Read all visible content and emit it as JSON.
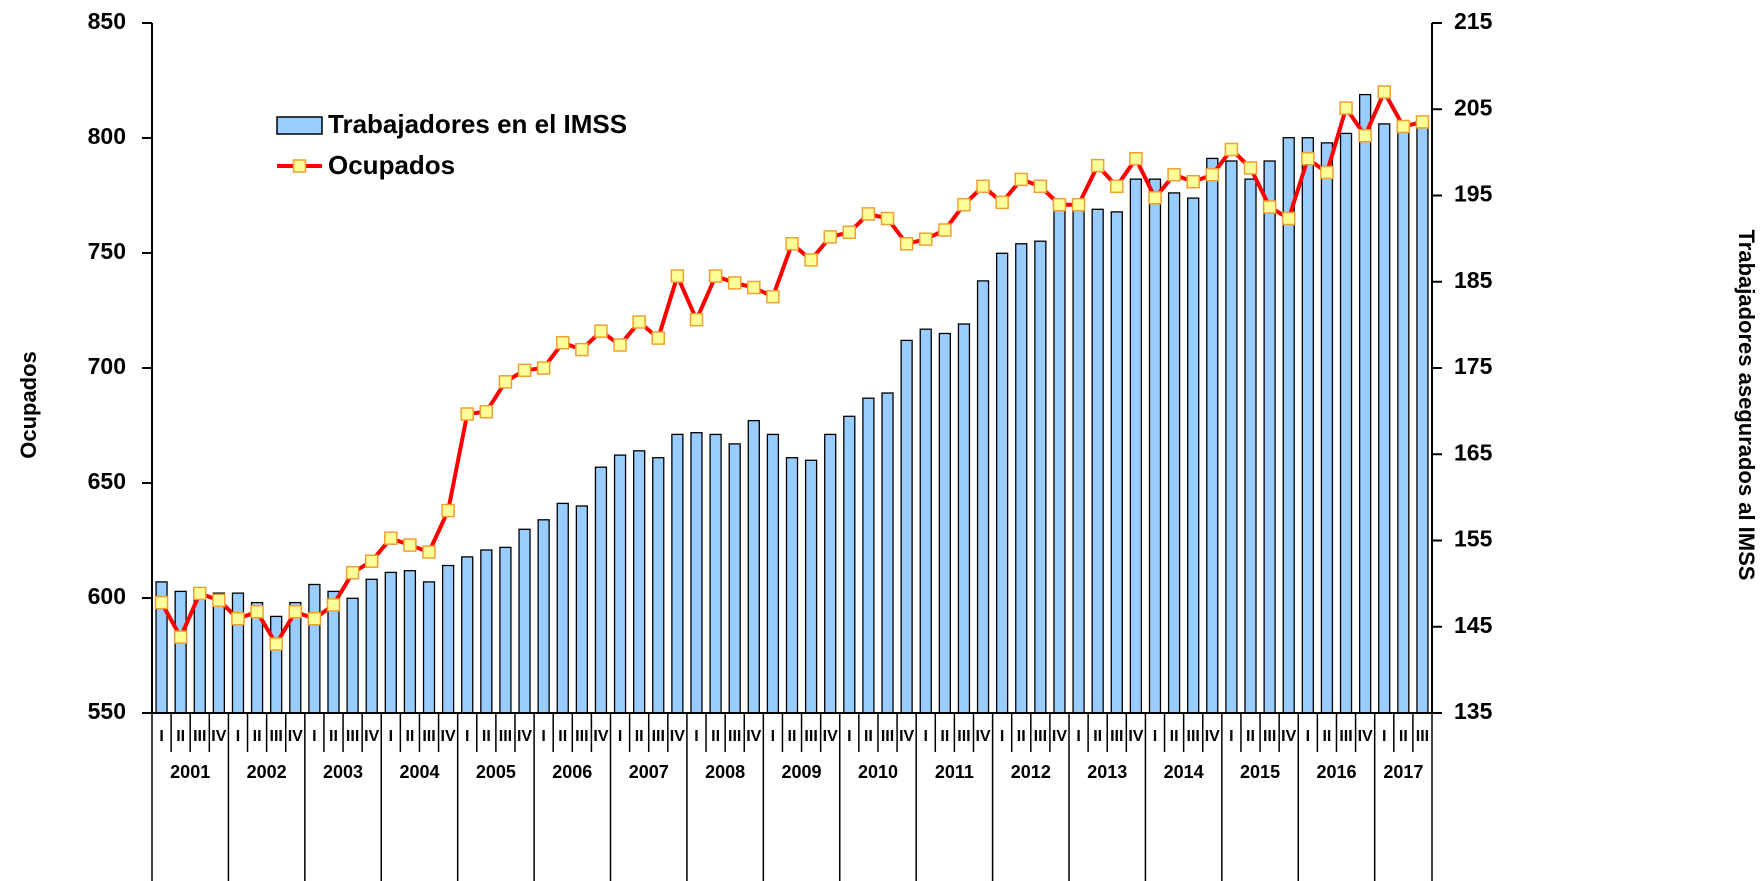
{
  "chart_data": {
    "type": "combo",
    "categories": [
      "I",
      "II",
      "III",
      "IV",
      "I",
      "II",
      "III",
      "IV",
      "I",
      "II",
      "III",
      "IV",
      "I",
      "II",
      "III",
      "IV",
      "I",
      "II",
      "III",
      "IV",
      "I",
      "II",
      "III",
      "IV",
      "I",
      "II",
      "III",
      "IV",
      "I",
      "II",
      "III",
      "IV",
      "I",
      "II",
      "III",
      "IV",
      "I",
      "II",
      "III",
      "IV",
      "I",
      "II",
      "III",
      "IV",
      "I",
      "II",
      "III",
      "IV",
      "I",
      "II",
      "III",
      "IV",
      "I",
      "II",
      "III",
      "IV",
      "I",
      "II",
      "III",
      "IV",
      "I",
      "II",
      "III",
      "IV",
      "I",
      "II",
      "III"
    ],
    "x_groups": [
      "2001",
      "2002",
      "2003",
      "2004",
      "2005",
      "2006",
      "2007",
      "2008",
      "2009",
      "2010",
      "2011",
      "2012",
      "2013",
      "2014",
      "2015",
      "2016",
      "2017"
    ],
    "y_label": "Ocupados",
    "y2_label": "Trabajadores asegurados al IMSS",
    "ylim": [
      550,
      850
    ],
    "yticks": [
      550,
      600,
      650,
      700,
      750,
      800,
      850
    ],
    "y2lim": [
      135,
      215
    ],
    "y2ticks": [
      135,
      145,
      155,
      165,
      175,
      185,
      195,
      205,
      215
    ],
    "grid": false,
    "legend": "upper left",
    "series": [
      {
        "name": "Trabajadores en el IMSS",
        "type": "bar",
        "axis": "y2",
        "color": "#99ccff",
        "values": [
          150.2,
          149.1,
          148.3,
          148.9,
          148.9,
          147.8,
          146.2,
          147.8,
          149.9,
          149.1,
          148.3,
          150.5,
          151.3,
          151.5,
          150.2,
          152.1,
          153.1,
          153.9,
          154.2,
          156.3,
          157.4,
          159.3,
          159.0,
          163.5,
          164.9,
          165.4,
          164.6,
          167.3,
          167.5,
          167.3,
          166.2,
          168.9,
          167.3,
          164.6,
          164.3,
          167.3,
          169.4,
          171.5,
          172.1,
          178.2,
          179.5,
          179.0,
          180.1,
          185.1,
          188.3,
          189.4,
          189.7,
          193.7,
          193.7,
          193.4,
          193.1,
          196.9,
          196.9,
          195.3,
          194.7,
          199.3,
          199.0,
          196.9,
          199.0,
          201.7,
          201.7,
          201.1,
          202.2,
          206.7,
          203.3,
          202.5,
          203.0
        ]
      },
      {
        "name": "Ocupados",
        "type": "line",
        "axis": "y",
        "color": "#ff0000",
        "marker_color": "#ffff99",
        "values": [
          598,
          583,
          602,
          599,
          591,
          594,
          580,
          594,
          591,
          597,
          611,
          616,
          626,
          623,
          620,
          638,
          680,
          681,
          694,
          699,
          700,
          711,
          708,
          716,
          710,
          720,
          713,
          740,
          721,
          740,
          737,
          735,
          731,
          754,
          747,
          757,
          759,
          767,
          765,
          754,
          756,
          760,
          771,
          779,
          772,
          782,
          779,
          771,
          771,
          788,
          779,
          791,
          774,
          784,
          781,
          784,
          795,
          787,
          770,
          765,
          791,
          785,
          813,
          801,
          820,
          805,
          807
        ]
      }
    ]
  }
}
